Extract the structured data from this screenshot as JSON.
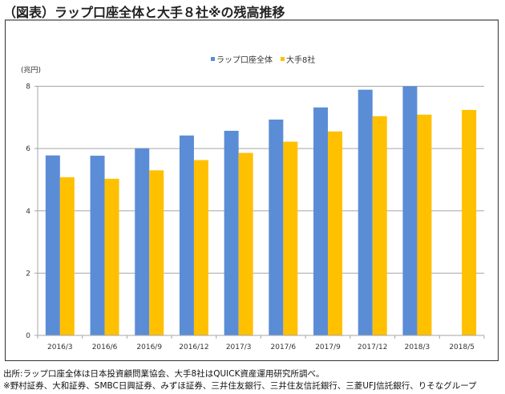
{
  "title": "（図表）ラップ口座全体と大手８社※の残高推移",
  "notes": [
    "出所:ラップ口座全体は日本投資顧問業協会、大手8社はQUICK資産運用研究所調べ。",
    "※野村証券、大和証券、SMBC日興証券、みずほ証券、三井住友銀行、三井住友信託銀行、三菱UFJ信託銀行、りそなグループ"
  ],
  "chart_data": {
    "type": "bar",
    "title": "",
    "xlabel": "",
    "ylabel": "(兆円)",
    "ylim": [
      0,
      8
    ],
    "yticks": [
      0,
      2,
      4,
      6,
      8
    ],
    "grid": true,
    "legend_position": "top-center",
    "categories": [
      "2016/3",
      "2016/6",
      "2016/9",
      "2016/12",
      "2017/3",
      "2017/6",
      "2017/9",
      "2017/12",
      "2018/3",
      "2018/5"
    ],
    "series": [
      {
        "name": "ラップ口座全体",
        "color": "#5B8DD6",
        "values": [
          5.78,
          5.77,
          6.01,
          6.42,
          6.57,
          6.93,
          7.32,
          7.89,
          8.0,
          null
        ]
      },
      {
        "name": "大手8社",
        "color": "#FFC000",
        "values": [
          5.08,
          5.03,
          5.3,
          5.63,
          5.86,
          6.22,
          6.55,
          7.04,
          7.09,
          7.24
        ]
      }
    ]
  }
}
